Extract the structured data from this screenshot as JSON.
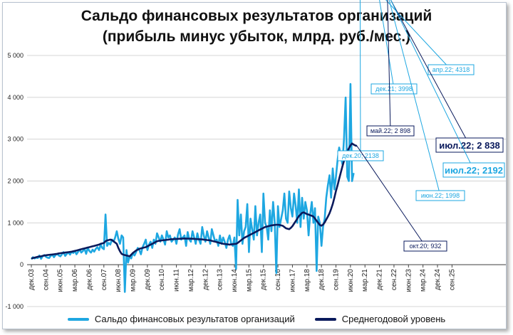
{
  "chart_data": {
    "type": "line",
    "title_line1": "Сальдо финансовых результатов организаций",
    "title_line2": "(прибыль минус убыток, млрд. руб./мес.)",
    "ylim": [
      -1000,
      5000
    ],
    "yticks": [
      "-1 000",
      "0",
      "1 000",
      "2 000",
      "3 000",
      "4 000",
      "5 000"
    ],
    "xticks": [
      "дек.03",
      "сен.04",
      "июн.05",
      "мар.06",
      "дек.06",
      "сен.07",
      "июн.08",
      "мар.09",
      "дек.09",
      "сен.10",
      "июн.11",
      "мар.12",
      "дек.12",
      "сен.13",
      "июн.14",
      "мар.15",
      "дек.15",
      "сен.16",
      "июн.17",
      "мар.18",
      "дек.18",
      "сен.19",
      "июн.20",
      "мар.21",
      "дек.21",
      "сен.22",
      "июн.23",
      "мар.24",
      "дек.24",
      "сен.25"
    ],
    "x_start": "дек.03",
    "series": [
      {
        "name": "Сальдо финансовых результатов организаций",
        "color": "#1ea7e1",
        "values": [
          130,
          180,
          150,
          170,
          160,
          220,
          140,
          200,
          230,
          190,
          170,
          160,
          210,
          240,
          180,
          230,
          260,
          220,
          200,
          250,
          300,
          210,
          260,
          290,
          240,
          310,
          280,
          330,
          250,
          310,
          360,
          290,
          330,
          380,
          260,
          400,
          330,
          290,
          360,
          310,
          380,
          420,
          350,
          480,
          400,
          370,
          1200,
          450,
          520,
          480,
          600,
          550,
          650,
          800,
          620,
          500,
          700,
          650,
          -650,
          350,
          50,
          200,
          150,
          280,
          220,
          300,
          400,
          350,
          250,
          420,
          500,
          600,
          350,
          480,
          550,
          400,
          600,
          500,
          750,
          650,
          550,
          700,
          600,
          480,
          800,
          650,
          700,
          550,
          600,
          650,
          500,
          720,
          850,
          600,
          650,
          700,
          450,
          780,
          600,
          550,
          800,
          650,
          500,
          750,
          600,
          500,
          900,
          700,
          550,
          800,
          650,
          500,
          850,
          700,
          550,
          600,
          450,
          700,
          500,
          650,
          550,
          400,
          600,
          700,
          500,
          450,
          650,
          -100,
          1550,
          700,
          1200,
          500,
          800,
          900,
          1450,
          300,
          1100,
          850,
          600,
          1400,
          700,
          1000,
          1200,
          300,
          1700,
          1000,
          900,
          600,
          1300,
          800,
          1500,
          1000,
          -200,
          1400,
          900,
          1100,
          1300,
          1700,
          1100,
          1000,
          1750,
          1350,
          1150,
          1700,
          1400,
          1000,
          1800,
          900,
          1600,
          1100,
          1500,
          1300,
          700,
          1200,
          1500,
          1000,
          1350,
          -150,
          1150,
          1000,
          450,
          900,
          1100,
          1600,
          1900,
          2138,
          1600,
          2300,
          1800,
          2100,
          2500,
          2800,
          2600,
          2400,
          3000,
          3998,
          2100,
          2000,
          4318,
          1998,
          2192
        ]
      },
      {
        "name": "Среднегодовой уровень",
        "color": "#0a1a5c",
        "values": [
          150,
          160,
          170,
          180,
          190,
          195,
          200,
          210,
          220,
          225,
          230,
          235,
          240,
          245,
          250,
          255,
          260,
          270,
          275,
          280,
          285,
          290,
          295,
          300,
          305,
          310,
          320,
          330,
          340,
          350,
          360,
          370,
          380,
          390,
          400,
          410,
          420,
          430,
          440,
          450,
          460,
          470,
          480,
          500,
          510,
          520,
          560,
          580,
          590,
          600,
          590,
          560,
          530,
          500,
          400,
          320,
          260,
          240,
          230,
          220,
          210,
          200,
          240,
          280,
          310,
          340,
          360,
          380,
          390,
          400,
          410,
          420,
          440,
          460,
          480,
          500,
          520,
          540,
          560,
          570,
          575,
          580,
          585,
          590,
          595,
          600,
          605,
          610,
          612,
          614,
          616,
          618,
          620,
          622,
          624,
          626,
          625,
          624,
          623,
          622,
          620,
          618,
          615,
          612,
          610,
          608,
          605,
          600,
          595,
          590,
          585,
          580,
          570,
          560,
          550,
          540,
          530,
          520,
          510,
          500,
          495,
          490,
          485,
          480,
          485,
          490,
          495,
          500,
          520,
          550,
          580,
          610,
          640,
          660,
          680,
          700,
          720,
          740,
          760,
          780,
          800,
          820,
          840,
          860,
          880,
          900,
          910,
          920,
          930,
          940,
          945,
          950,
          955,
          955,
          950,
          940,
          930,
          900,
          870,
          860,
          850,
          880,
          920,
          980,
          1040,
          1100,
          1160,
          1200,
          1240,
          1250,
          1230,
          1210,
          1200,
          1180,
          1170,
          1150,
          1100,
          1050,
          1000,
          950,
          932,
          960,
          1010,
          1080,
          1150,
          1230,
          1330,
          1450,
          1600,
          1760,
          1900,
          2050,
          2200,
          2350,
          2480,
          2600,
          2700,
          2780,
          2850,
          2898,
          2870,
          2850,
          2838
        ]
      }
    ],
    "annotations": [
      {
        "text": "дек.20; 2138"
      },
      {
        "text": "дек.21; 3998"
      },
      {
        "text": "апр.22; 4318"
      },
      {
        "text": "май.22; 2 898"
      },
      {
        "text": "июл.22; 2 838"
      },
      {
        "text": "июл.22; 2192"
      },
      {
        "text": "июн.22; 1998"
      },
      {
        "text": "окт.20; 932"
      }
    ]
  }
}
